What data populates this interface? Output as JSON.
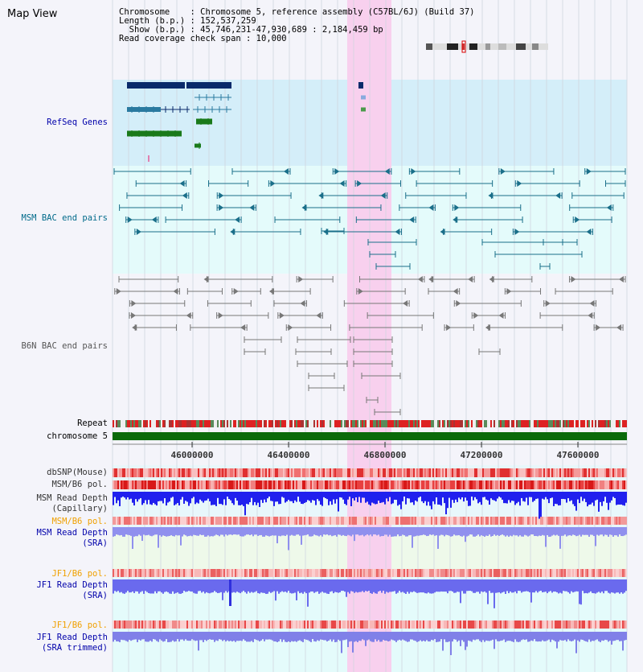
{
  "title": "Map View",
  "info": {
    "line1": "Chromosome    : Chromosome 5, reference assembly (C57BL/6J) (Build 37)",
    "line2": "Length (b.p.) : 152,537,259",
    "line3": "  Show (b.p.) : 45,746,231-47,930,689 : 2,184,459 bp",
    "line4": "Read coverage check span : 10,000"
  },
  "tracks": {
    "refseq": "RefSeq Genes",
    "msm_bac": "MSM BAC end pairs",
    "b6n_bac": "B6N BAC end pairs",
    "repeat": "Repeat",
    "chromosome": "chromosome 5",
    "dbsnp": "dbSNP(Mouse)",
    "msm_pol": "MSM/B6 pol.",
    "msm_depth_cap_1": "MSM Read Depth",
    "msm_depth_cap_2": "(Capillary)",
    "msm_pol2": "MSM/B6 pol.",
    "msm_depth_sra_1": "MSM Read Depth",
    "msm_depth_sra_2": "(SRA)",
    "jf1_pol": "JF1/B6 pol.",
    "jf1_depth_sra_1": "JF1 Read Depth",
    "jf1_depth_sra_2": "(SRA)",
    "jf1_pol2": "JF1/B6 pol.",
    "jf1_depth_trim_1": "JF1 Read Depth",
    "jf1_depth_trim_2": "(SRA trimmed)"
  },
  "axis": {
    "ticks": [
      "46000000",
      "46400000",
      "46800000",
      "47200000",
      "47600000"
    ]
  },
  "colors": {
    "gene_dark": "#0a2a6a",
    "gene_teal": "#2a7aa0",
    "gene_green": "#1a7a1a",
    "msm_pair": "#1a6f8a",
    "b6n_pair": "#777777",
    "highlight": "#f8d0ee",
    "depth_blue": "#2020ee",
    "label_blue": "#0000aa",
    "label_teal": "#006a8a",
    "label_orange": "#f0a000"
  }
}
